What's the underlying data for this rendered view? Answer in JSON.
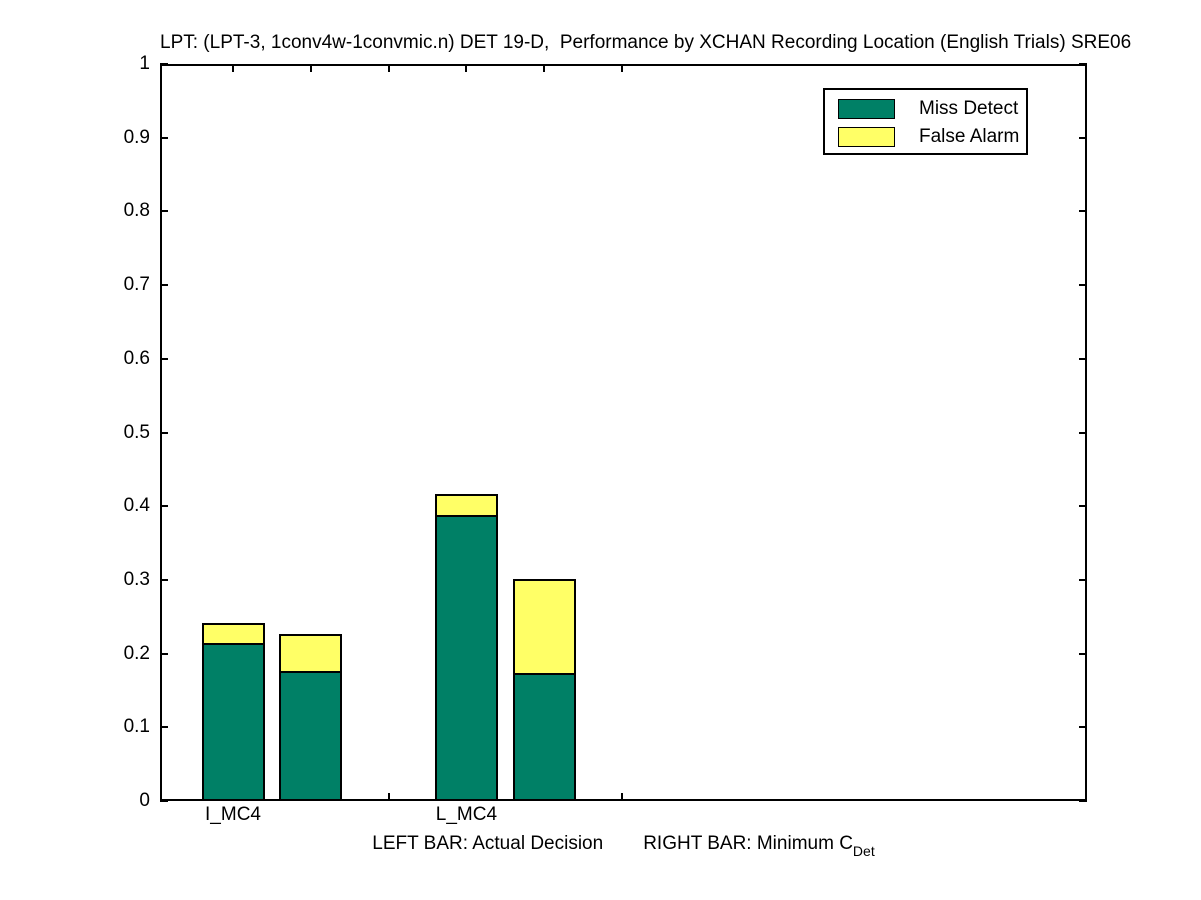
{
  "chart_data": {
    "type": "bar",
    "stacked": true,
    "grouped": true,
    "title": "LPT: (LPT-3, 1conv4w-1convmic.n) DET 19-D,  Performance by XCHAN Recording Location (English Trials) SRE06",
    "xlabel_note": {
      "left": "LEFT BAR: Actual Decision",
      "right": "RIGHT BAR: Minimum C",
      "right_subscript": "Det"
    },
    "ylabel": "",
    "ylim": [
      0,
      1
    ],
    "ytick_labels": [
      "0",
      "0.1",
      "0.2",
      "0.3",
      "0.4",
      "0.5",
      "0.6",
      "0.7",
      "0.8",
      "0.9",
      "1"
    ],
    "categories": [
      "I_MC4",
      "L_MC4"
    ],
    "bars_per_category": [
      "Actual Decision (left bar)",
      "Minimum C_Det (right bar)"
    ],
    "series": [
      {
        "name": "Miss Detect",
        "color": "#008066",
        "values": [
          [
            0.214,
            0.176
          ],
          [
            0.388,
            0.173
          ]
        ]
      },
      {
        "name": "False Alarm",
        "color": "#ffff66",
        "values": [
          [
            0.028,
            0.05
          ],
          [
            0.028,
            0.128
          ]
        ]
      }
    ],
    "stack_totals": [
      [
        0.242,
        0.226
      ],
      [
        0.416,
        0.301
      ]
    ],
    "legend": {
      "position": "top-right",
      "entries": [
        "Miss Detect",
        "False Alarm"
      ]
    },
    "grid": false,
    "axis_color": "#000000",
    "background": "#ffffff"
  }
}
